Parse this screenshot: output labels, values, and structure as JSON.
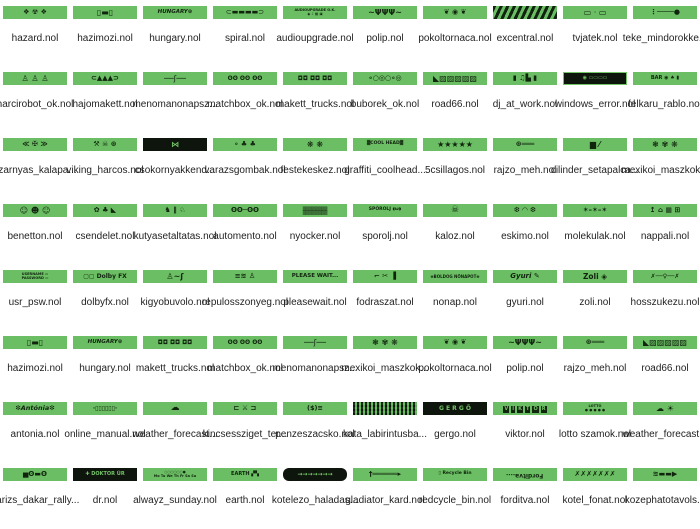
{
  "page": {
    "background": "#ffffff",
    "thumbnail_green": "#6cbe64",
    "thumbnail_dark": "#0e150c",
    "label_color": "#1f1f1f",
    "columns": 10
  },
  "files": [
    {
      "file": "hazard.nol",
      "art": "❖ ☢ ❖",
      "fs": 7,
      "bold": true
    },
    {
      "file": "hazimozi.nol",
      "art": "▯▬▯",
      "fs": 8,
      "bold": true
    },
    {
      "file": "hungary.nol",
      "art": "HUNGARY⊛",
      "fs": 5.5,
      "bold": true,
      "italic": true
    },
    {
      "file": "spiral.nol",
      "art": "⊂▬▬▬▬⊃",
      "fs": 7
    },
    {
      "file": "audioupgrade.nol",
      "art": "AUDIOUPGRADE O.K.\n◉ ♪ ▦ ▣",
      "fs": 3.5,
      "bold": true
    },
    {
      "file": "polip.nol",
      "art": "~ΨΨΨ~",
      "fs": 8,
      "bold": true
    },
    {
      "file": "pokoltornaca.nol",
      "art": "❦ ◉ ❦",
      "fs": 7,
      "bold": true
    },
    {
      "file": "excentral.nol",
      "art": "",
      "variant": "stripes"
    },
    {
      "file": "tvjatek.nol",
      "art": "▭ · ▭",
      "fs": 8
    },
    {
      "file": "teke_mindorokke...",
      "art": "⋮────●",
      "fs": 7,
      "bold": true
    },
    {
      "file": "harcirobot_ok.nol",
      "art": "♙ ♙ ♙",
      "fs": 8,
      "bold": true
    },
    {
      "file": "hajomakett.nol",
      "art": "⊂▲▲▲⊃",
      "fs": 7,
      "bold": true
    },
    {
      "file": "menomanonapsz...",
      "art": "──ʃ──",
      "fs": 8
    },
    {
      "file": "matchbox_ok.nol",
      "art": "ʘʘ ʘʘ ʘʘ",
      "fs": 6,
      "bold": true
    },
    {
      "file": "makett_trucks.nol",
      "art": "◘◘ ◘◘ ◘◘",
      "fs": 6,
      "bold": true
    },
    {
      "file": "buborek_ok.nol",
      "art": "∘○◎○∘◎",
      "fs": 7,
      "bold": true
    },
    {
      "file": "road66.nol",
      "art": "◣▨▨▨▨▨",
      "fs": 8
    },
    {
      "file": "dj_at_work.nol",
      "art": "▮ ♫▙ ▮",
      "fs": 7,
      "bold": true
    },
    {
      "file": "windows_error.nol",
      "art": "◉ ▭▭▭▭",
      "variant": "black framed",
      "fs": 5
    },
    {
      "file": "felkaru_rablo.nol",
      "art": "BAR ◉ ♠ ▮",
      "fs": 5,
      "bold": true
    },
    {
      "file": "szarnyas_kalapa...",
      "art": "≪ ✠ ≫",
      "fs": 7,
      "bold": true
    },
    {
      "file": "viking_harcos.nol",
      "art": "⚒ ☠ ⊛",
      "fs": 7,
      "bold": true
    },
    {
      "file": "csokornyakkend...",
      "art": "⋈",
      "variant": "black",
      "fs": 8,
      "bold": true
    },
    {
      "file": "varazsgombak.nol",
      "art": "∘ ♣ ♣",
      "fs": 7,
      "bold": true
    },
    {
      "file": "festekeskez.nol",
      "art": "❋ ❋",
      "fs": 8,
      "bold": true
    },
    {
      "file": "graffiti_coolhead...",
      "art": "▓COOL HEAD▓",
      "fs": 4.5,
      "bold": true
    },
    {
      "file": "5csillagos.nol",
      "art": "★★★★★",
      "fs": 8
    },
    {
      "file": "rajzo_meh.nol",
      "art": "⊛═══",
      "fs": 7,
      "bold": true
    },
    {
      "file": "cilinder_setapalca...",
      "art": "▆ ⁄",
      "fs": 8,
      "bold": true
    },
    {
      "file": "mexikoi_maszkok...",
      "art": "❃ ✾ ❋",
      "fs": 8,
      "bold": true
    },
    {
      "file": "benetton.nol",
      "art": "☺ ☻ ☺",
      "fs": 8,
      "bold": true
    },
    {
      "file": "csendelet.nol",
      "art": "✿ ♣ ◣",
      "fs": 7,
      "bold": true
    },
    {
      "file": "kutyasetaltatas.nol",
      "art": "♞ ∥ ♘",
      "fs": 7,
      "bold": true
    },
    {
      "file": "automento.nol",
      "art": "ʘʘ─ʘʘ",
      "fs": 7,
      "bold": true
    },
    {
      "file": "nyocker.nol",
      "art": "▒▒▒▒▒▒▒▒\n▒▒▒▒▒▒▒▒",
      "fs": 4,
      "bold": true
    },
    {
      "file": "sporolj.nol",
      "art": "SPÓROLJ ◖ω◗",
      "fs": 4.5,
      "bold": true
    },
    {
      "file": "kaloz.nol",
      "art": "☠",
      "fs": 9,
      "bold": true
    },
    {
      "file": "eskimo.nol",
      "art": "❆ ◠ ❆",
      "fs": 7,
      "bold": true
    },
    {
      "file": "molekulak.nol",
      "art": "✶–✶–✶",
      "fs": 7,
      "bold": true
    },
    {
      "file": "nappali.nol",
      "art": "↥ ⌂ ▦ ⊞",
      "fs": 7,
      "bold": true
    },
    {
      "file": "usr_psw.nol",
      "art": "USERNAME ▭\nPASSWORD ▭",
      "fs": 3.5,
      "bold": true
    },
    {
      "file": "dolbyfx.nol",
      "art": "▢▢ Dolby FX",
      "fs": 6,
      "bold": true
    },
    {
      "file": "kigyobuvolo.nol",
      "art": "♙~ʃ",
      "fs": 8,
      "bold": true
    },
    {
      "file": "repulosszonyeg.nol",
      "art": "≡≋ ♙",
      "fs": 7,
      "bold": true
    },
    {
      "file": "pleasewait.nol",
      "art": "PLEASE WAIT...",
      "fs": 5.5,
      "bold": true
    },
    {
      "file": "fodraszat.nol",
      "art": "⌐ ✂ ▐",
      "fs": 7,
      "bold": true
    },
    {
      "file": "nonap.nol",
      "art": "❀BOLDOG NŐNAPOT❀",
      "fs": 4,
      "bold": true
    },
    {
      "file": "gyuri.nol",
      "art": "Gyuri ✎",
      "fs": 7,
      "bold": true,
      "italic": true
    },
    {
      "file": "zoli.nol",
      "art": "Zoli ◈",
      "fs": 7.5,
      "bold": true
    },
    {
      "file": "hosszukezu.nol",
      "art": "✗──♀──✗",
      "fs": 6,
      "bold": true
    },
    {
      "file": "hazimozi.nol",
      "art": "▯▬▯",
      "fs": 8,
      "bold": true
    },
    {
      "file": "hungary.nol",
      "art": "HUNGARY⊛",
      "fs": 5.5,
      "bold": true,
      "italic": true
    },
    {
      "file": "makett_trucks.nol",
      "art": "◘◘ ◘◘ ◘◘",
      "fs": 6,
      "bold": true
    },
    {
      "file": "matchbox_ok.nol",
      "art": "ʘʘ ʘʘ ʘʘ",
      "fs": 6,
      "bold": true
    },
    {
      "file": "menomanonapsz...",
      "art": "──ʃ──",
      "fs": 8
    },
    {
      "file": "mexikoi_maszkok...",
      "art": "❃ ✾ ❋",
      "fs": 8,
      "bold": true
    },
    {
      "file": "pokoltornaca.nol",
      "art": "❦ ◉ ❦",
      "fs": 7,
      "bold": true
    },
    {
      "file": "polip.nol",
      "art": "~ΨΨΨ~",
      "fs": 8,
      "bold": true
    },
    {
      "file": "rajzo_meh.nol",
      "art": "⊛═══",
      "fs": 7,
      "bold": true
    },
    {
      "file": "road66.nol",
      "art": "◣▨▨▨▨▨",
      "fs": 8
    },
    {
      "file": "antonia.nol",
      "art": "✼Antónia✼",
      "fs": 6.5,
      "bold": true,
      "italic": true
    },
    {
      "file": "online_manual.nol",
      "art": "·▯▯▯▯▯▯·",
      "fs": 6,
      "bold": true
    },
    {
      "file": "weather_forecast...",
      "art": "☁",
      "fs": 9,
      "bold": true
    },
    {
      "file": "kincsessziget_ter...",
      "art": "⊏ ⚔ ⊐",
      "fs": 7,
      "bold": true
    },
    {
      "file": "penzeszacsko.nol",
      "art": "($)≡",
      "fs": 6.5,
      "bold": true
    },
    {
      "file": "kata_labirintusba...",
      "art": "",
      "variant": "maze"
    },
    {
      "file": "gergo.nol",
      "art": "G E R G Ő",
      "variant": "black",
      "fs": 6,
      "bold": true
    },
    {
      "file": "viktor.nol",
      "art": "VIKTOR",
      "variant": "tiles"
    },
    {
      "file": "lotto szamok.nol",
      "art": "LOTTÓ\n● ● ● ● ●",
      "fs": 3.5,
      "bold": true
    },
    {
      "file": "weather_forecast...",
      "art": "☁ ☀",
      "fs": 8,
      "bold": true
    },
    {
      "file": "parizs_dakar_rally...",
      "art": "▅ʘ▬ʘ",
      "fs": 7,
      "bold": true
    },
    {
      "file": "dr.nol",
      "art": "✚ DOKTOR ÚR",
      "variant": "black",
      "fs": 5,
      "bold": true
    },
    {
      "file": "alwayz_sunday.nol",
      "art": "○○○○○○●\nMo Tu We Th Fr Sa Su",
      "fs": 3.5,
      "bold": true
    },
    {
      "file": "earth.nol",
      "art": "EARTH ▞▚",
      "fs": 5,
      "bold": true
    },
    {
      "file": "kotelezo_haladas...",
      "art": "→→→→→→→",
      "variant": "black pill",
      "fs": 6,
      "bold": true
    },
    {
      "file": "gladiator_kard.nol",
      "art": "†══════▸",
      "fs": 7,
      "bold": true
    },
    {
      "file": "redcycle_bin.nol",
      "art": "▯ Recycle Bin",
      "fs": 4.5,
      "bold": true
    },
    {
      "file": "forditva.nol",
      "art": "Forditva....",
      "variant": "flip",
      "fs": 6,
      "bold": true
    },
    {
      "file": "kotel_fonat.nol",
      "art": "✗✗✗✗✗✗✗",
      "fs": 7,
      "bold": true
    },
    {
      "file": "kozephatotavols...",
      "art": "≋▬▬▶",
      "fs": 7,
      "bold": true
    }
  ]
}
